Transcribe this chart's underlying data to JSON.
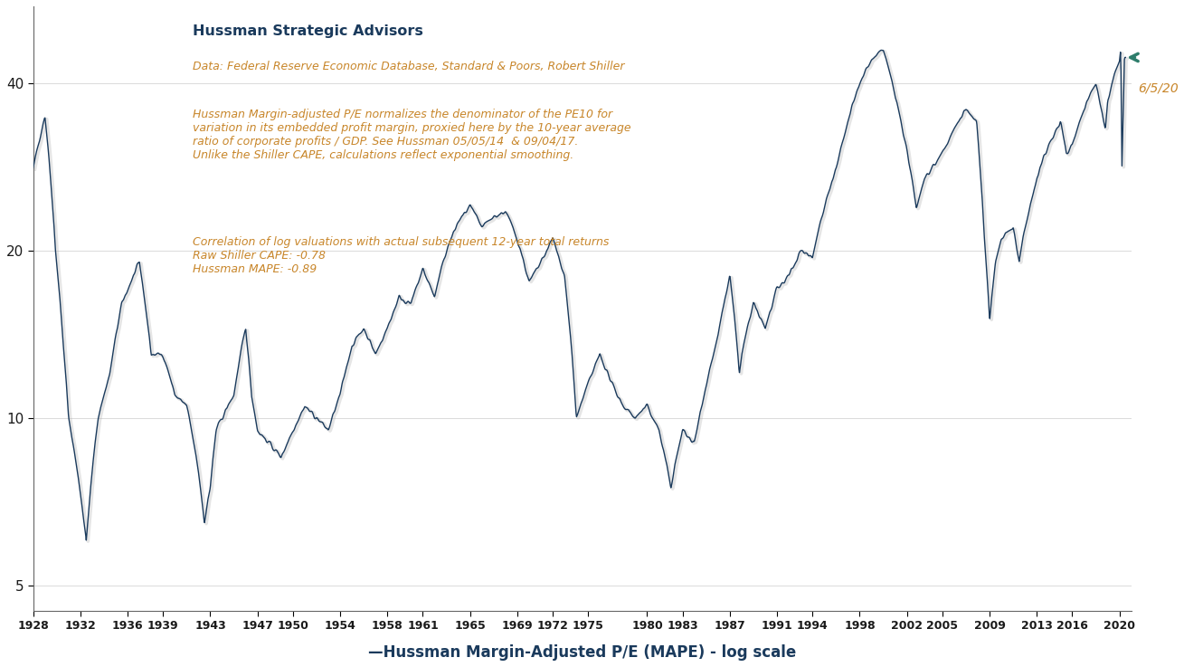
{
  "title": "Hussman Strategic Advisors",
  "subtitle_data": "Data: Federal Reserve Economic Database, Standard & Poors, Robert Shiller",
  "subtitle_body": "Hussman Margin-adjusted P/E normalizes the denominator of the PE10 for\nvariation in its embedded profit margin, proxied here by the 10-year average\nratio of corporate profits / GDP. See Hussman 05/05/14  & 09/04/17.\nUnlike the Shiller CAPE, calculations reflect exponential smoothing.",
  "subtitle_corr": "Correlation of log valuations with actual subsequent 12-year total returns\nRaw Shiller CAPE: -0.78\nHussman MAPE: -0.89",
  "xlabel": "—Hussman Margin-Adjusted P/E (MAPE) - log scale",
  "annotation_label": "6/5/20",
  "line_color": "#1a3a5c",
  "arrow_color": "#2e7d6b",
  "annotation_color": "#c8862a",
  "title_color": "#1a3a5c",
  "text_color": "#c8862a",
  "background_color": "#ffffff",
  "yticks": [
    5,
    10,
    20,
    40
  ],
  "ylim": [
    4.5,
    55
  ],
  "xlim_start": 1928,
  "xlim_end": 2021,
  "xticks": [
    1928,
    1932,
    1936,
    1939,
    1943,
    1947,
    1950,
    1954,
    1958,
    1961,
    1965,
    1969,
    1972,
    1975,
    1980,
    1983,
    1987,
    1991,
    1994,
    1998,
    2002,
    2005,
    2009,
    2013,
    2016,
    2020
  ]
}
